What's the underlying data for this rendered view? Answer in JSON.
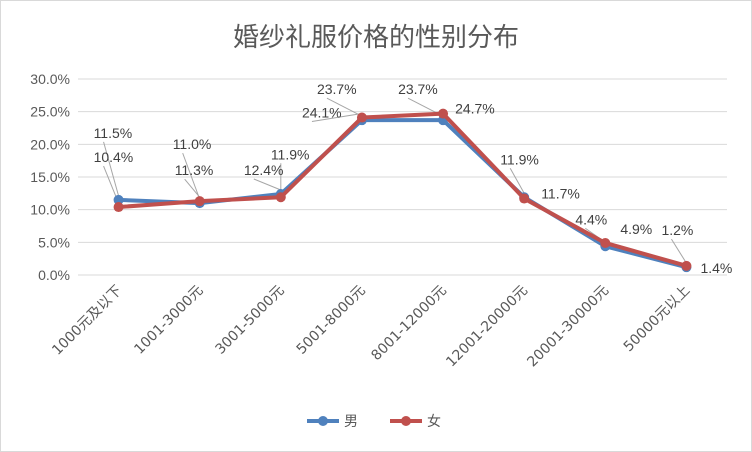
{
  "chart_data": {
    "type": "line",
    "title": "婚纱礼服价格的性别分布",
    "categories": [
      "1000元及以下",
      "1001-3000元",
      "3001-5000元",
      "5001-8000元",
      "8001-12000元",
      "12001-20000元",
      "20001-30000元",
      "50000元以上"
    ],
    "series": [
      {
        "name": "男",
        "color": "#4f81bd",
        "values": [
          11.5,
          11.0,
          12.4,
          23.7,
          23.7,
          11.9,
          4.4,
          1.2
        ]
      },
      {
        "name": "女",
        "color": "#c0504d",
        "values": [
          10.4,
          11.3,
          11.9,
          24.1,
          24.7,
          11.7,
          4.9,
          1.4
        ]
      }
    ],
    "data_labels": {
      "男": [
        "11.5%",
        "11.0%",
        "12.4%",
        "23.7%",
        "23.7%",
        "11.9%",
        "4.4%",
        "1.2%"
      ],
      "女": [
        "10.4%",
        "11.3%",
        "11.9%",
        "24.1%",
        "24.7%",
        "11.7%",
        "4.9%",
        "1.4%"
      ]
    },
    "y_ticks": [
      "0.0%",
      "5.0%",
      "10.0%",
      "15.0%",
      "20.0%",
      "25.0%",
      "30.0%"
    ],
    "ylim": [
      0,
      30
    ],
    "grid": true,
    "legend": "bottom"
  }
}
